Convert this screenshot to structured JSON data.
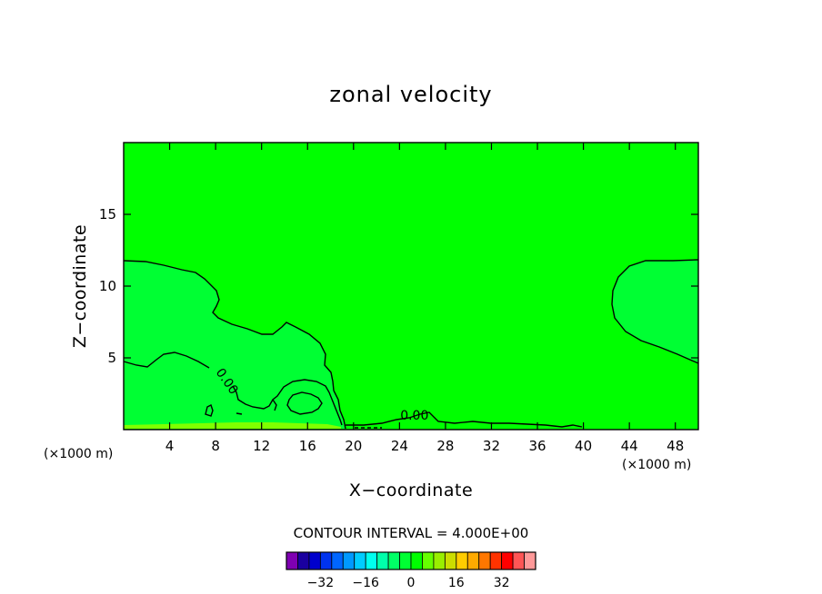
{
  "chart_data": {
    "type": "contour",
    "title": "zonal velocity",
    "xlabel": "X−coordinate",
    "ylabel": "Z−coordinate",
    "x_unit_left": "(×1000 m)",
    "x_unit_right": "(×1000 m)",
    "xlim": [
      0,
      50
    ],
    "ylim": [
      0,
      20
    ],
    "x_ticks": [
      4,
      8,
      12,
      16,
      20,
      24,
      28,
      32,
      36,
      40,
      44,
      48
    ],
    "y_ticks": [
      5,
      10,
      15
    ],
    "contour_interval_text": "CONTOUR INTERVAL = 4.000E+00",
    "contour_labels": [
      {
        "text": "0.00",
        "x": 8.7,
        "z": 3.2
      },
      {
        "text": "0.00",
        "x": 25.3,
        "z": 0.7
      }
    ],
    "regions": [
      {
        "name": "background",
        "value_range": [
          4,
          8
        ],
        "color": "#00ff00"
      },
      {
        "name": "upper-left region",
        "value_range": [
          0,
          4
        ],
        "color": "#00ff33"
      },
      {
        "name": "right region",
        "value_range": [
          0,
          4
        ],
        "color": "#00ff33"
      }
    ],
    "colorbar": {
      "colors": [
        "#7f00b2",
        "#1a00a0",
        "#0000cc",
        "#0033ee",
        "#0066ff",
        "#0099ff",
        "#00ccff",
        "#00ffee",
        "#00ffaa",
        "#00ff66",
        "#00ff33",
        "#00ff00",
        "#66ff00",
        "#99ee00",
        "#ccdd00",
        "#ffcc00",
        "#ffaa00",
        "#ff7700",
        "#ff3300",
        "#ff0000",
        "#ff5555",
        "#ff9999"
      ],
      "labels": [
        {
          "text": "−32",
          "value": -32
        },
        {
          "text": "−16",
          "value": -16
        },
        {
          "text": "0",
          "value": 0
        },
        {
          "text": "16",
          "value": 16
        },
        {
          "text": "32",
          "value": 32
        }
      ]
    }
  }
}
